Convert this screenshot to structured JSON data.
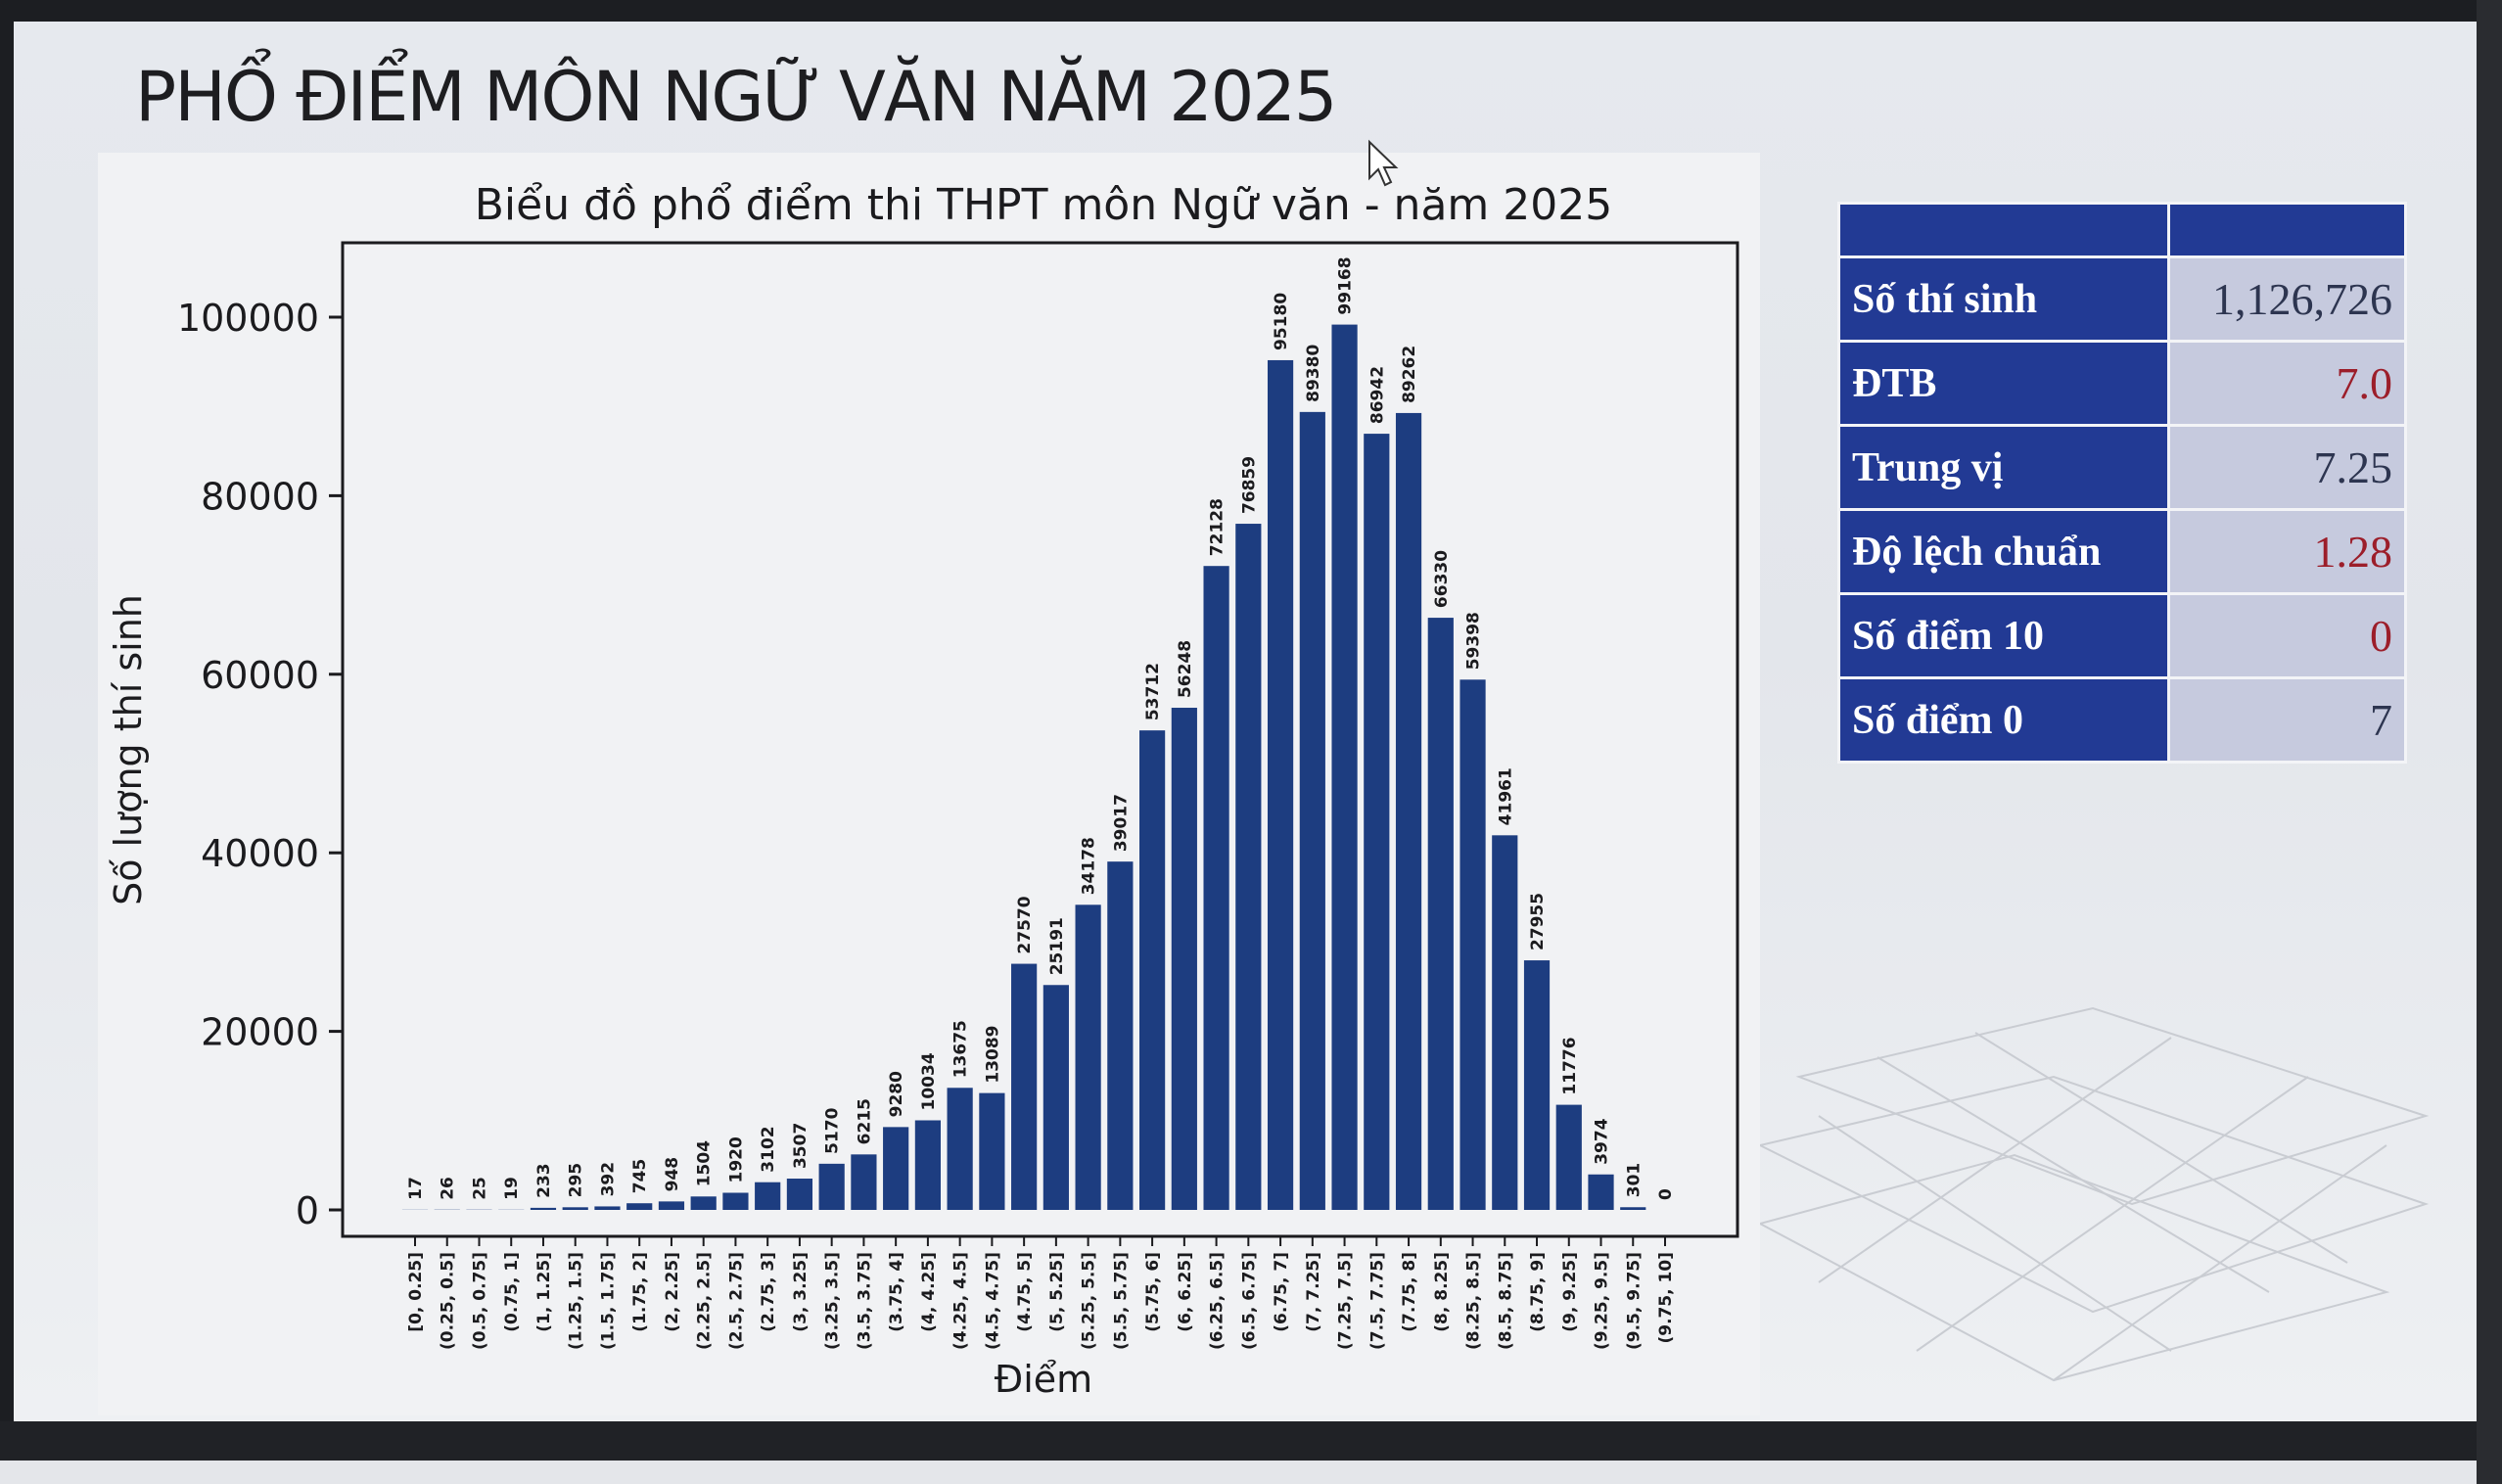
{
  "page": {
    "title": "PHỔ ĐIỂM MÔN NGỮ VĂN NĂM 2025"
  },
  "stats": {
    "rows": [
      {
        "label": "Số thí sinh",
        "value": "1,126,726",
        "color": "#2d3550"
      },
      {
        "label": "ĐTB",
        "value": "7.0",
        "color": "#9c1e2a"
      },
      {
        "label": "Trung vị",
        "value": "7.25",
        "color": "#2d3550"
      },
      {
        "label": "Độ lệch chuẩn",
        "value": "1.28",
        "color": "#9c1e2a"
      },
      {
        "label": "Số điểm 10",
        "value": "0",
        "color": "#9c1e2a"
      },
      {
        "label": "Số điểm 0",
        "value": "7",
        "color": "#2d3550"
      }
    ],
    "header_color": "#223a94"
  },
  "chart_data": {
    "type": "bar",
    "title": "Biểu đồ phổ điểm thi THPT môn Ngữ văn - năm 2025",
    "xlabel": "Điểm",
    "ylabel": "Số lượng thí sinh",
    "ylim": [
      0,
      108000
    ],
    "yticks": [
      0,
      20000,
      40000,
      60000,
      80000,
      100000
    ],
    "bar_color": "#1d3d80",
    "categories": [
      "[0, 0.25]",
      "(0.25, 0.5]",
      "(0.5, 0.75]",
      "(0.75, 1]",
      "(1, 1.25]",
      "(1.25, 1.5]",
      "(1.5, 1.75]",
      "(1.75, 2]",
      "(2, 2.25]",
      "(2.25, 2.5]",
      "(2.5, 2.75]",
      "(2.75, 3]",
      "(3, 3.25]",
      "(3.25, 3.5]",
      "(3.5, 3.75]",
      "(3.75, 4]",
      "(4, 4.25]",
      "(4.25, 4.5]",
      "(4.5, 4.75]",
      "(4.75, 5]",
      "(5, 5.25]",
      "(5.25, 5.5]",
      "(5.5, 5.75]",
      "(5.75, 6]",
      "(6, 6.25]",
      "(6.25, 6.5]",
      "(6.5, 6.75]",
      "(6.75, 7]",
      "(7, 7.25]",
      "(7.25, 7.5]",
      "(7.5, 7.75]",
      "(7.75, 8]",
      "(8, 8.25]",
      "(8.25, 8.5]",
      "(8.5, 8.75]",
      "(8.75, 9]",
      "(9, 9.25]",
      "(9.25, 9.5]",
      "(9.5, 9.75]",
      "(9.75, 10]"
    ],
    "values": [
      17,
      26,
      25,
      19,
      233,
      295,
      392,
      745,
      948,
      1504,
      1920,
      3102,
      3507,
      5170,
      6215,
      9280,
      10034,
      13675,
      13089,
      27570,
      25191,
      34178,
      39017,
      53712,
      56248,
      72128,
      76859,
      95180,
      89380,
      99168,
      86942,
      89262,
      66330,
      59398,
      41961,
      27955,
      11776,
      3974,
      301,
      0
    ]
  }
}
